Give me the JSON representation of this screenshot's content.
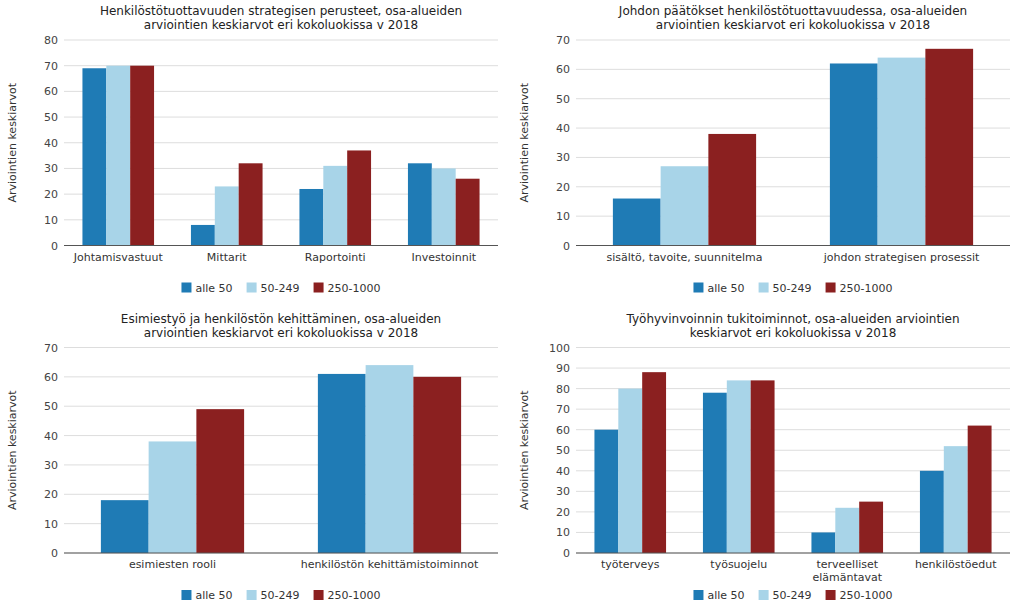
{
  "chart_data": [
    {
      "type": "bar",
      "title": "Henkilöstötuottavuuden strategisen perusteet, osa-alueiden\narviointien keskiarvot eri kokoluokissa v 2018",
      "ylabel": "Arviointien keskiarvot",
      "categories": [
        "Johtamisvastuut",
        "Mittarit",
        "Raportointi",
        "Investoinnit"
      ],
      "series": [
        {
          "name": "alle 50",
          "color": "#1f7bb5",
          "values": [
            69,
            8,
            22,
            32
          ]
        },
        {
          "name": "50-249",
          "color": "#a8d4e8",
          "values": [
            70,
            23,
            31,
            30
          ]
        },
        {
          "name": "250-1000",
          "color": "#8b2020",
          "values": [
            70,
            32,
            37,
            26
          ]
        }
      ],
      "ylim": [
        0,
        80
      ],
      "yticks": [
        0,
        10,
        20,
        30,
        40,
        50,
        60,
        70,
        80
      ],
      "grid": true,
      "legend": "bottom"
    },
    {
      "type": "bar",
      "title": "Johdon päätökset henkilöstötuottavuudessa, osa-alueiden\narviointien keskiarvot eri kokoluokissa v 2018",
      "ylabel": "Arviointien keskiarvot",
      "categories": [
        "sisältö, tavoite, suunnitelma",
        "johdon strategisen prosessit"
      ],
      "series": [
        {
          "name": "alle 50",
          "color": "#1f7bb5",
          "values": [
            16,
            62
          ]
        },
        {
          "name": "50-249",
          "color": "#a8d4e8",
          "values": [
            27,
            64
          ]
        },
        {
          "name": "250-1000",
          "color": "#8b2020",
          "values": [
            38,
            67
          ]
        }
      ],
      "ylim": [
        0,
        70
      ],
      "yticks": [
        0,
        10,
        20,
        30,
        40,
        50,
        60,
        70
      ],
      "grid": true,
      "legend": "bottom"
    },
    {
      "type": "bar",
      "title": "Esimiestyö ja henkilöstön kehittäminen, osa-alueiden\narviointien keskiarvot eri kokoluokissa v 2018",
      "ylabel": "Arviointien keskiarvot",
      "categories": [
        "esimiesten rooli",
        "henkilöstön kehittämistoiminnot"
      ],
      "series": [
        {
          "name": "alle 50",
          "color": "#1f7bb5",
          "values": [
            18,
            61
          ]
        },
        {
          "name": "50-249",
          "color": "#a8d4e8",
          "values": [
            38,
            64
          ]
        },
        {
          "name": "250-1000",
          "color": "#8b2020",
          "values": [
            49,
            60
          ]
        }
      ],
      "ylim": [
        0,
        70
      ],
      "yticks": [
        0,
        10,
        20,
        30,
        40,
        50,
        60,
        70
      ],
      "grid": true,
      "legend": "bottom"
    },
    {
      "type": "bar",
      "title": "Työhyvinvoinnin tukitoiminnot, osa-alueiden arviointien\nkeskiarvot eri kokoluokissa v 2018",
      "ylabel": "Arviointien keskiarvot",
      "categories": [
        "työterveys",
        "työsuojelu",
        "terveelliset\nelämäntavat",
        "henkilöstöedut"
      ],
      "series": [
        {
          "name": "alle 50",
          "color": "#1f7bb5",
          "values": [
            60,
            78,
            10,
            40
          ]
        },
        {
          "name": "50-249",
          "color": "#a8d4e8",
          "values": [
            80,
            84,
            22,
            52
          ]
        },
        {
          "name": "250-1000",
          "color": "#8b2020",
          "values": [
            88,
            84,
            25,
            62
          ]
        }
      ],
      "ylim": [
        0,
        100
      ],
      "yticks": [
        0,
        10,
        20,
        30,
        40,
        50,
        60,
        70,
        80,
        90,
        100
      ],
      "grid": true,
      "legend": "bottom"
    }
  ]
}
